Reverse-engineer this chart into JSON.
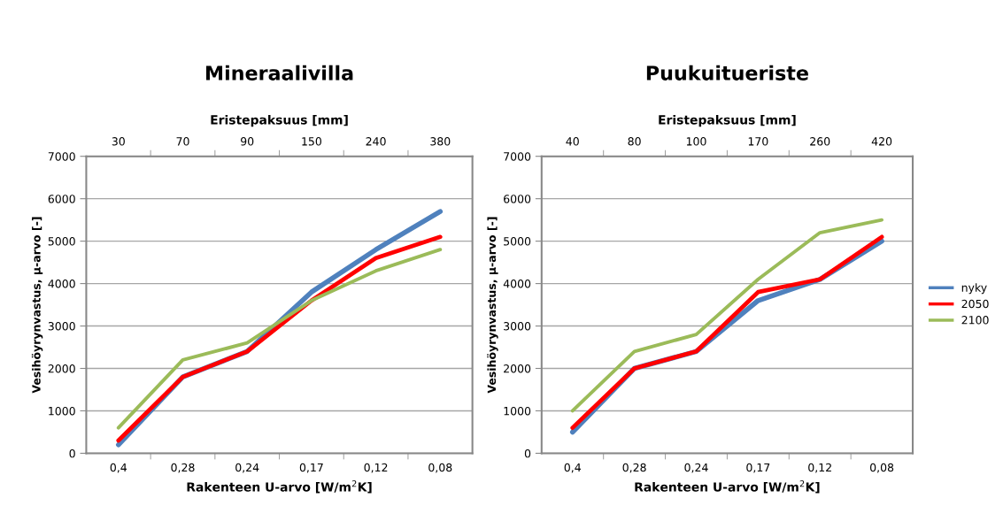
{
  "chart_data": [
    {
      "type": "line",
      "title": "Mineraalivilla",
      "xlabel": "Rakenteen U-arvo [W/m$^{2}$K]",
      "ylabel": "Vesihöyrynvastus, µ-arvo [-]",
      "x2label": "Eristepaksuus [mm]",
      "categories": [
        "0,4",
        "0,28",
        "0,24",
        "0,17",
        "0,12",
        "0,08"
      ],
      "annotations": [
        "30",
        "70",
        "90",
        "150",
        "240",
        "380"
      ],
      "ylim": [
        0,
        7000
      ],
      "yticks": [
        0,
        1000,
        2000,
        3000,
        4000,
        5000,
        6000,
        7000
      ],
      "grid": "y",
      "legend": false,
      "series": [
        {
          "color": "#4f81bd",
          "values": [
            200,
            1800,
            2400,
            3800,
            4800,
            5700
          ]
        },
        {
          "color": "#ff0000",
          "values": [
            300,
            1800,
            2400,
            3600,
            4600,
            5100
          ]
        },
        {
          "color": "#9bbb59",
          "values": [
            600,
            2200,
            2600,
            3600,
            4300,
            4800
          ]
        }
      ]
    },
    {
      "type": "line",
      "title": "Puukuitueriste",
      "xlabel": "Rakenteen U-arvo [W/m$^{2}$K]",
      "ylabel": "Vesihöyrynvastus, µ-arvo [-]",
      "x2label": "Eristepaksuus [mm]",
      "categories": [
        "0,4",
        "0,28",
        "0,24",
        "0,17",
        "0,12",
        "0,08"
      ],
      "annotations": [
        "40",
        "80",
        "100",
        "170",
        "260",
        "420"
      ],
      "ylim": [
        0,
        7000
      ],
      "yticks": [
        0,
        1000,
        2000,
        3000,
        4000,
        5000,
        6000,
        7000
      ],
      "grid": "y",
      "legend": "right",
      "series": [
        {
          "name": "nyky",
          "color": "#4f81bd",
          "values": [
            500,
            2000,
            2400,
            3600,
            4100,
            5000
          ]
        },
        {
          "name": "2050",
          "color": "#ff0000",
          "values": [
            600,
            2000,
            2400,
            3800,
            4100,
            5100
          ]
        },
        {
          "name": "2100",
          "color": "#9bbb59",
          "values": [
            1000,
            2400,
            2800,
            4100,
            5200,
            5500
          ]
        }
      ]
    }
  ]
}
